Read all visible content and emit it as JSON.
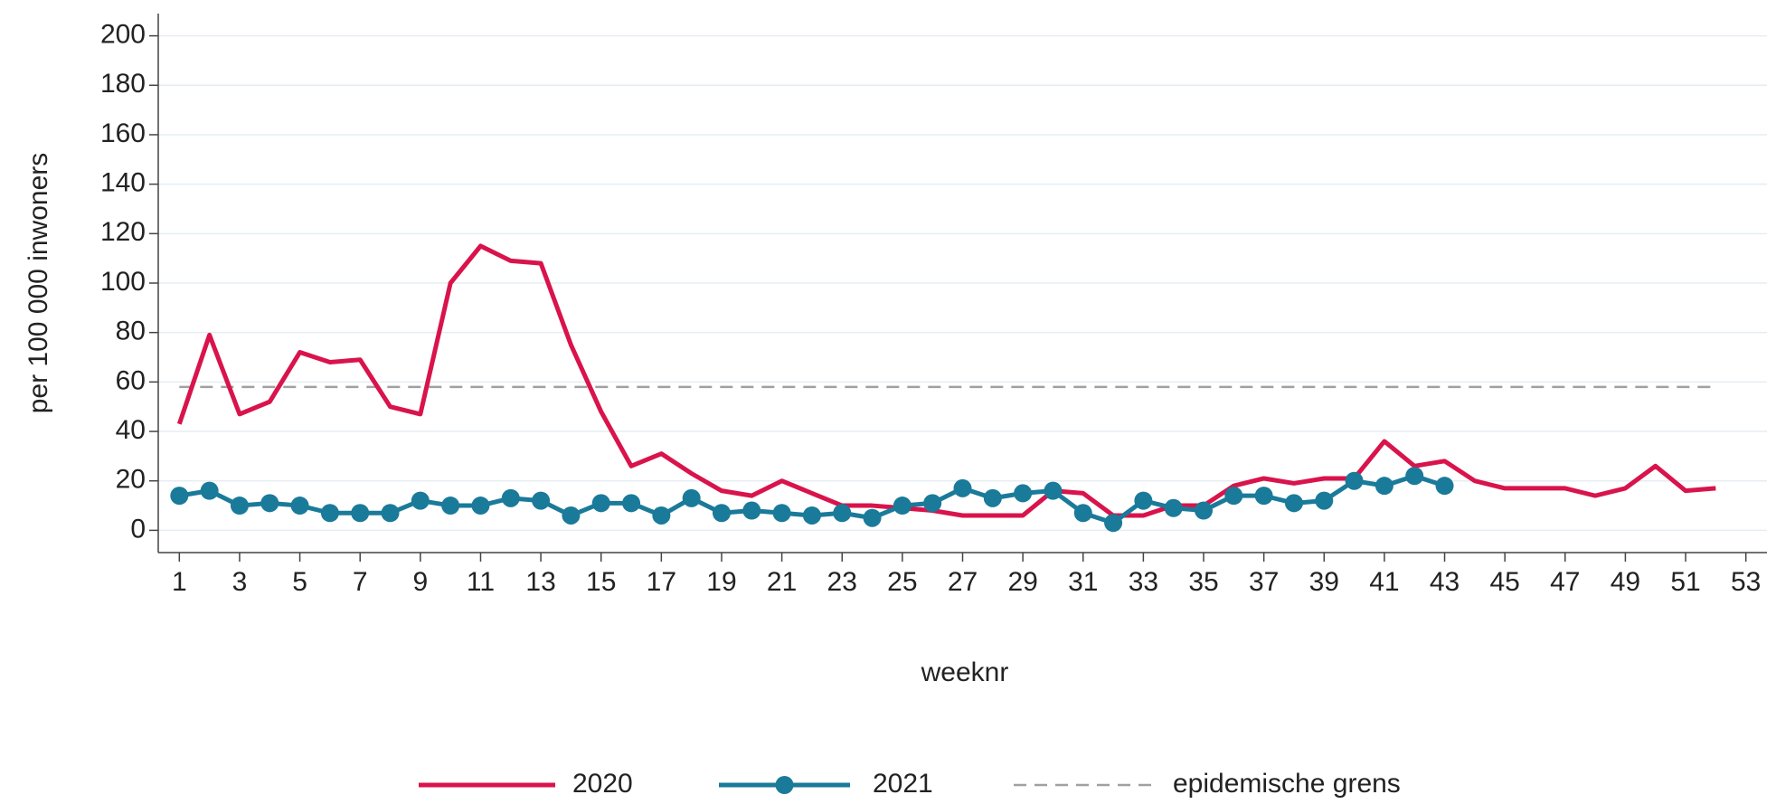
{
  "chart_data": {
    "type": "line",
    "x_label": "weeknr",
    "y_label": "per 100 000 inwoners",
    "x": [
      1,
      2,
      3,
      4,
      5,
      6,
      7,
      8,
      9,
      10,
      11,
      12,
      13,
      14,
      15,
      16,
      17,
      18,
      19,
      20,
      21,
      22,
      23,
      24,
      25,
      26,
      27,
      28,
      29,
      30,
      31,
      32,
      33,
      34,
      35,
      36,
      37,
      38,
      39,
      40,
      41,
      42,
      43,
      44,
      45,
      46,
      47,
      48,
      49,
      50,
      51,
      52
    ],
    "series": [
      {
        "name": "2020",
        "color": "#d9134b",
        "markers": false,
        "values": [
          43,
          79,
          47,
          52,
          72,
          68,
          69,
          50,
          47,
          100,
          115,
          109,
          108,
          75,
          48,
          26,
          31,
          23,
          16,
          14,
          20,
          15,
          10,
          10,
          9,
          8,
          6,
          6,
          6,
          16,
          15,
          6,
          6,
          10,
          10,
          18,
          21,
          19,
          21,
          21,
          36,
          26,
          28,
          20,
          17,
          17,
          17,
          14,
          17,
          26,
          16,
          17
        ]
      },
      {
        "name": "2021",
        "color": "#1a7a9a",
        "markers": true,
        "values": [
          14,
          16,
          10,
          11,
          10,
          7,
          7,
          7,
          12,
          10,
          10,
          13,
          12,
          6,
          11,
          11,
          6,
          13,
          7,
          8,
          7,
          6,
          7,
          5,
          10,
          11,
          17,
          13,
          15,
          16,
          7,
          3,
          12,
          9,
          8,
          14,
          14,
          11,
          12,
          20,
          18,
          22,
          18,
          null,
          null,
          null,
          null,
          null,
          null,
          null,
          null,
          null
        ]
      }
    ],
    "threshold": {
      "name": "epidemische grens",
      "value": 58,
      "color": "#a0a0a0"
    },
    "xlim": [
      0.3,
      53.7
    ],
    "ylim": [
      -9,
      209
    ],
    "xticks": [
      1,
      3,
      5,
      7,
      9,
      11,
      13,
      15,
      17,
      19,
      21,
      23,
      25,
      27,
      29,
      31,
      33,
      35,
      37,
      39,
      41,
      43,
      45,
      47,
      49,
      51,
      53
    ],
    "yticks": [
      0,
      20,
      40,
      60,
      80,
      100,
      120,
      140,
      160,
      180,
      200
    ],
    "grid": true
  }
}
